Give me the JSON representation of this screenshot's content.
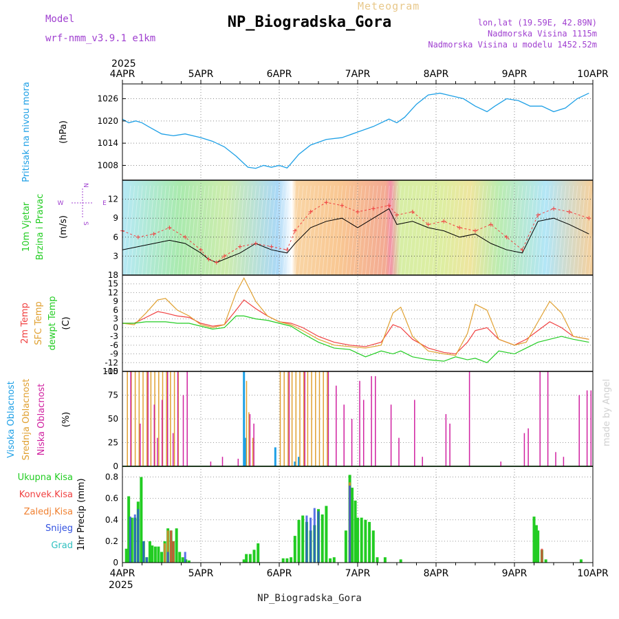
{
  "header": {
    "title": "NP_Biogradska_Gora",
    "meteogram_label": "Meteogram",
    "model_label": "Model",
    "model_value": "wrf-nmm_v3.9.1 e1km",
    "loc_line1": "lon,lat (19.59E, 42.89N)",
    "loc_line2": "Nadmorska Visina 1115m",
    "loc_line3": "Nadmorska Visina u modelu 1452.52m"
  },
  "footer": {
    "station": "NP_Biogradska_Gora"
  },
  "watermark": "made by Angel",
  "colors": {
    "pressure": "#1ea0e6",
    "wind_label": "#22cc22",
    "temp2m": "#f04040",
    "sfc_temp": "#e0a030",
    "dewpoint": "#22cc22",
    "high_cloud": "#1ea0e6",
    "mid_cloud": "#e0a030",
    "low_cloud": "#d020a0",
    "total_precip": "#22cc22",
    "conv_precip": "#f04040",
    "frozen_precip": "#f08030",
    "snow": "#3050e0",
    "hail": "#30c0c0",
    "wind_ne": "#a040d0"
  },
  "chart_data": [
    {
      "type": "line",
      "id": "pressure",
      "ylabel": "Pritisak na nivou mora",
      "unit": "(hPa)",
      "ylim": [
        1004,
        1030
      ],
      "yticks": [
        1008,
        1014,
        1020,
        1026
      ],
      "x_days": [
        0,
        0.08,
        0.17,
        0.25,
        0.33,
        0.5,
        0.65,
        0.8,
        1.0,
        1.15,
        1.3,
        1.45,
        1.6,
        1.7,
        1.8,
        1.9,
        2.0,
        2.1,
        2.15,
        2.25,
        2.4,
        2.6,
        2.8,
        3.0,
        3.2,
        3.4,
        3.5,
        3.6,
        3.75,
        3.9,
        4.05,
        4.15,
        4.35,
        4.5,
        4.65,
        4.75,
        4.9,
        5.05,
        5.2,
        5.35,
        5.5,
        5.65,
        5.8,
        5.95
      ],
      "values": [
        1020.5,
        1019.5,
        1020,
        1019.5,
        1018.5,
        1016.5,
        1016,
        1016.5,
        1015.5,
        1014.5,
        1013,
        1010.5,
        1007.5,
        1007.2,
        1008,
        1007.5,
        1008,
        1007.3,
        1008.5,
        1011,
        1013.5,
        1015,
        1015.5,
        1017,
        1018.5,
        1020.5,
        1019.5,
        1021,
        1024.5,
        1027,
        1027.5,
        1027,
        1026,
        1024,
        1022.5,
        1024,
        1026,
        1025.5,
        1024,
        1024,
        1022.5,
        1023.5,
        1026,
        1027.5
      ]
    },
    {
      "type": "line",
      "id": "wind",
      "ylabel1": "10m Vjetar",
      "ylabel2": "Brzina i Pravac",
      "unit": "(m/s)",
      "ylim": [
        0,
        15
      ],
      "yticks": [
        3,
        6,
        9,
        12
      ],
      "compass": {
        "north": "N",
        "south": "S",
        "east": "E",
        "west": "W"
      },
      "series": [
        {
          "name": "sustained",
          "x_days": [
            0,
            0.2,
            0.4,
            0.6,
            0.8,
            1.0,
            1.1,
            1.2,
            1.3,
            1.5,
            1.7,
            1.9,
            2.1,
            2.2,
            2.4,
            2.6,
            2.8,
            3.0,
            3.2,
            3.4,
            3.5,
            3.7,
            3.9,
            4.1,
            4.3,
            4.5,
            4.7,
            4.9,
            5.1,
            5.3,
            5.5,
            5.7,
            5.95
          ],
          "values": [
            4,
            4.5,
            5,
            5.5,
            5,
            3.5,
            2.5,
            2,
            2.5,
            3.5,
            5,
            4,
            3.5,
            5,
            7.5,
            8.5,
            9,
            7.5,
            9,
            10.5,
            8,
            8.5,
            7.5,
            7,
            6,
            6.5,
            5,
            4,
            3.5,
            8.5,
            9,
            8,
            6.5
          ]
        },
        {
          "name": "gust",
          "x_days": [
            0,
            0.2,
            0.4,
            0.6,
            0.8,
            1.0,
            1.1,
            1.2,
            1.3,
            1.5,
            1.7,
            1.9,
            2.1,
            2.2,
            2.4,
            2.6,
            2.8,
            3.0,
            3.2,
            3.4,
            3.5,
            3.7,
            3.9,
            4.1,
            4.3,
            4.5,
            4.7,
            4.9,
            5.1,
            5.3,
            5.5,
            5.7,
            5.95
          ],
          "values": [
            7,
            6,
            6.5,
            7.5,
            6,
            4,
            2.5,
            2,
            3,
            4.5,
            5,
            4.5,
            4,
            7,
            10,
            11.5,
            11,
            10,
            10.5,
            11,
            9.5,
            10,
            8,
            8.5,
            7.5,
            7,
            8,
            6,
            4,
            9.5,
            10.5,
            10,
            9
          ]
        }
      ]
    },
    {
      "type": "line",
      "id": "temperature",
      "ylabels": [
        "2m Temp",
        "SFC Temp",
        "dewpt Temp"
      ],
      "unit": "(C)",
      "ylim": [
        -15,
        18
      ],
      "yticks": [
        -15,
        -12,
        -9,
        -6,
        -3,
        0,
        3,
        6,
        9,
        12,
        15,
        18
      ],
      "x_days": [
        0,
        0.15,
        0.3,
        0.45,
        0.55,
        0.7,
        0.85,
        1.0,
        1.15,
        1.3,
        1.45,
        1.55,
        1.7,
        1.85,
        2.0,
        2.15,
        2.3,
        2.5,
        2.7,
        2.9,
        3.1,
        3.3,
        3.45,
        3.55,
        3.7,
        3.9,
        4.1,
        4.25,
        4.4,
        4.5,
        4.65,
        4.8,
        5.0,
        5.15,
        5.3,
        5.45,
        5.6,
        5.75,
        5.95
      ],
      "series": [
        {
          "name": "2m Temp",
          "values": [
            1.5,
            1.5,
            3.5,
            5.5,
            5,
            4,
            3.5,
            1.5,
            0.5,
            1,
            6,
            9.5,
            6.5,
            4,
            2,
            1.5,
            0,
            -3,
            -5,
            -6,
            -6.5,
            -5,
            1,
            0,
            -4,
            -7,
            -8.5,
            -9,
            -5,
            -1,
            0,
            -4,
            -6,
            -4,
            -1,
            2,
            0,
            -3,
            -4
          ]
        },
        {
          "name": "SFC Temp",
          "values": [
            1.5,
            1,
            5,
            9.5,
            10,
            6,
            4,
            1,
            0,
            1,
            12,
            17,
            9,
            4,
            2,
            1,
            -1,
            -4,
            -6,
            -6.5,
            -7,
            -6,
            5,
            7,
            -3,
            -8,
            -9,
            -9.5,
            -2,
            8,
            6,
            -4,
            -6,
            -5,
            2,
            9,
            5,
            -3,
            -4
          ]
        },
        {
          "name": "dewpt Temp",
          "values": [
            1.5,
            1.5,
            2,
            2,
            2,
            1.5,
            1.5,
            0.5,
            -0.5,
            0,
            4,
            4,
            3,
            2.5,
            1.5,
            0.5,
            -2,
            -5,
            -7,
            -7.5,
            -10,
            -8,
            -9,
            -8,
            -10,
            -11,
            -11.5,
            -10,
            -11,
            -10.5,
            -12,
            -8,
            -9,
            -7,
            -5,
            -4,
            -3,
            -4,
            -5
          ]
        }
      ]
    },
    {
      "type": "bar",
      "id": "cloud",
      "ylabels": [
        "Visoka Oblacnost",
        "Srednja Oblacnost",
        "Niska Oblacnost"
      ],
      "unit": "(%)",
      "ylim": [
        0,
        100
      ],
      "yticks": [
        0,
        25,
        50,
        75,
        100
      ],
      "series": [
        {
          "name": "Visoka Oblacnost",
          "x_days": [
            1.55,
            1.57,
            1.95,
            2.2,
            2.25
          ],
          "values": [
            100,
            30,
            20,
            5,
            10
          ]
        },
        {
          "name": "Srednja Oblacnost",
          "x_days": [
            0.05,
            0.1,
            0.15,
            0.2,
            0.25,
            0.3,
            0.35,
            0.4,
            0.45,
            0.5,
            0.55,
            0.6,
            0.65,
            0.7,
            1.57,
            1.6,
            1.65,
            2.0,
            2.05,
            2.1,
            2.15,
            2.2,
            2.25,
            2.3,
            2.35,
            2.4,
            2.45,
            2.5,
            2.55,
            2.6
          ],
          "values": [
            100,
            100,
            100,
            100,
            100,
            100,
            100,
            100,
            100,
            100,
            100,
            100,
            100,
            100,
            90,
            57,
            30,
            100,
            100,
            100,
            100,
            100,
            100,
            100,
            100,
            100,
            100,
            100,
            100,
            100
          ]
        },
        {
          "name": "Niska Oblacnost",
          "x_days": [
            0.08,
            0.2,
            0.3,
            0.38,
            0.42,
            0.48,
            0.55,
            0.62,
            0.68,
            0.75,
            0.8,
            1.1,
            1.25,
            1.45,
            1.6,
            1.65,
            2.1,
            2.3,
            2.6,
            2.7,
            2.8,
            2.9,
            3.0,
            3.05,
            3.15,
            3.2,
            3.4,
            3.5,
            3.7,
            3.8,
            4.1,
            4.15,
            4.4,
            4.8,
            5.1,
            5.15,
            5.3,
            5.4,
            5.5,
            5.6,
            5.8,
            5.9,
            5.95
          ],
          "values": [
            100,
            45,
            100,
            65,
            30,
            70,
            100,
            35,
            100,
            75,
            100,
            5,
            10,
            8,
            55,
            45,
            100,
            100,
            100,
            85,
            65,
            50,
            90,
            70,
            95,
            95,
            65,
            30,
            70,
            10,
            55,
            45,
            100,
            5,
            35,
            40,
            100,
            100,
            15,
            10,
            75,
            80,
            80
          ]
        }
      ]
    },
    {
      "type": "bar",
      "id": "precip",
      "ylabels": [
        "Ukupna Kisa",
        "Konvek.Kisa",
        "Zaledj.Kisa",
        "Snijeg",
        "Grad"
      ],
      "unit": "1hr Precip (mm)",
      "ylim": [
        0,
        0.9
      ],
      "yticks": [
        0,
        0.2,
        0.4,
        0.6,
        0.8
      ],
      "series": [
        {
          "name": "Ukupna Kisa",
          "x_days": [
            0.05,
            0.08,
            0.12,
            0.16,
            0.2,
            0.24,
            0.27,
            0.31,
            0.35,
            0.38,
            0.42,
            0.46,
            0.5,
            0.54,
            0.58,
            0.62,
            0.65,
            0.69,
            0.73,
            0.77,
            0.81,
            0.85,
            1.55,
            1.58,
            1.63,
            1.68,
            1.73,
            2.05,
            2.1,
            2.15,
            2.2,
            2.25,
            2.3,
            2.35,
            2.4,
            2.45,
            2.5,
            2.55,
            2.6,
            2.65,
            2.7,
            2.85,
            2.9,
            2.93,
            2.97,
            3.0,
            3.05,
            3.1,
            3.15,
            3.2,
            3.25,
            3.35,
            3.55,
            5.25,
            5.28,
            5.3,
            5.35,
            5.4,
            5.85
          ],
          "values": [
            0.13,
            0.62,
            0.42,
            0.42,
            0.57,
            0.8,
            0.2,
            0.05,
            0.2,
            0.16,
            0.15,
            0.15,
            0.1,
            0.2,
            0.32,
            0.3,
            0.2,
            0.32,
            0.1,
            0.05,
            0.03,
            0.02,
            0.03,
            0.08,
            0.08,
            0.12,
            0.18,
            0.04,
            0.04,
            0.05,
            0.25,
            0.4,
            0.44,
            0.38,
            0.3,
            0.35,
            0.5,
            0.45,
            0.53,
            0.04,
            0.05,
            0.3,
            0.82,
            0.7,
            0.58,
            0.42,
            0.42,
            0.4,
            0.38,
            0.3,
            0.05,
            0.05,
            0.03,
            0.43,
            0.35,
            0.3,
            0.12,
            0.03,
            0.03
          ]
        },
        {
          "name": "Konvek.Kisa",
          "x_days": [
            0.62,
            0.65,
            5.35
          ],
          "values": [
            0.3,
            0.2,
            0.13
          ]
        },
        {
          "name": "Zaledj.Kisa",
          "x_days": [
            0.54,
            0.58,
            2.9
          ],
          "values": [
            0.18,
            0.3,
            0.75
          ]
        },
        {
          "name": "Snijeg",
          "x_days": [
            0.1,
            0.16,
            0.2,
            0.27,
            0.31,
            0.58,
            0.8,
            2.35,
            2.4,
            2.45,
            2.5,
            2.9
          ],
          "values": [
            0.43,
            0.45,
            0.5,
            0.2,
            0.05,
            0.1,
            0.1,
            0.44,
            0.42,
            0.51,
            0.48,
            0.72
          ]
        },
        {
          "name": "Grad",
          "x_days": [],
          "values": []
        }
      ]
    }
  ],
  "axis": {
    "top_year": "2025",
    "bottom_year": "2025",
    "day_labels": [
      "4APR",
      "5APR",
      "6APR",
      "7APR",
      "8APR",
      "9APR",
      "10APR"
    ]
  }
}
